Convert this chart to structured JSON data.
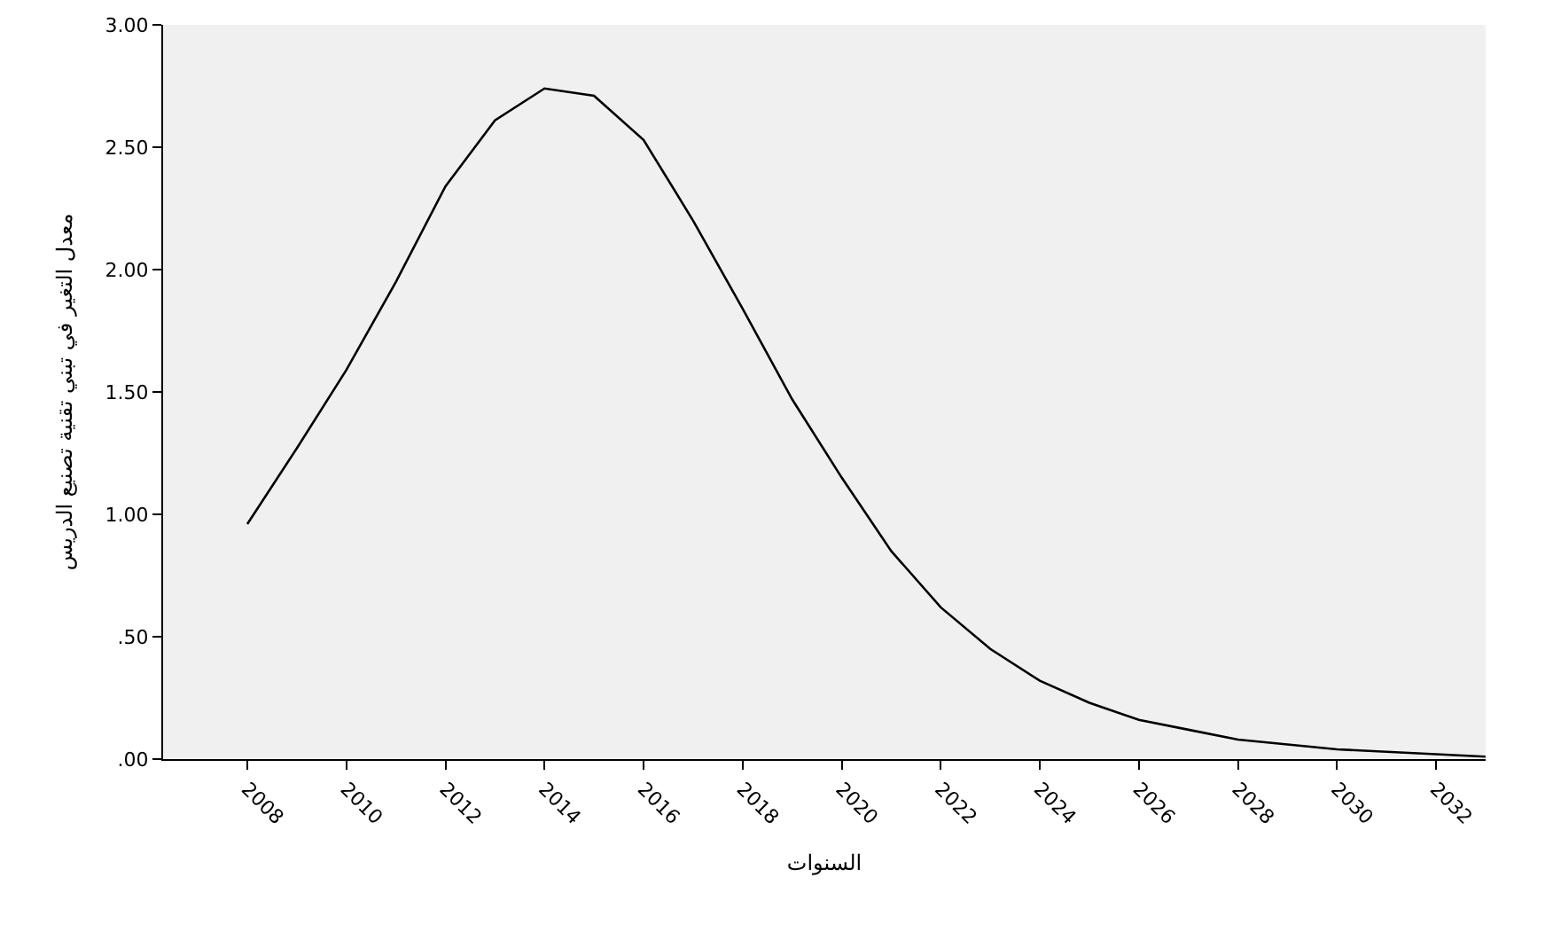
{
  "chart_data": {
    "type": "line",
    "x": [
      2008,
      2009,
      2010,
      2011,
      2012,
      2013,
      2014,
      2015,
      2016,
      2017,
      2018,
      2019,
      2020,
      2021,
      2022,
      2023,
      2024,
      2025,
      2026,
      2027,
      2028,
      2029,
      2030,
      2031,
      2032,
      2033
    ],
    "series": [
      {
        "color": "#000000",
        "values": [
          0.96,
          1.27,
          1.59,
          1.95,
          2.34,
          2.61,
          2.74,
          2.71,
          2.53,
          2.2,
          1.84,
          1.47,
          1.15,
          0.85,
          0.62,
          0.45,
          0.32,
          0.23,
          0.16,
          0.12,
          0.08,
          0.06,
          0.04,
          0.03,
          0.02,
          0.01
        ]
      }
    ],
    "xlabel": "السنوات",
    "ylabel": "معدل التغير في تبني تقنية تصنيع الدريس",
    "xlim": [
      2006.3,
      2033
    ],
    "xticks": [
      2008,
      2010,
      2012,
      2014,
      2016,
      2018,
      2020,
      2022,
      2024,
      2026,
      2028,
      2030,
      2032
    ],
    "ylim": [
      0,
      3
    ],
    "yticks": [
      {
        "value": 0,
        "label": ".00"
      },
      {
        "value": 0.5,
        "label": ".50"
      },
      {
        "value": 1,
        "label": "1.00"
      },
      {
        "value": 1.5,
        "label": "1.50"
      },
      {
        "value": 2,
        "label": "2.00"
      },
      {
        "value": 2.5,
        "label": "2.50"
      },
      {
        "value": 3,
        "label": "3.00"
      }
    ],
    "grid": false,
    "marker": "none",
    "line_style": "solid"
  }
}
